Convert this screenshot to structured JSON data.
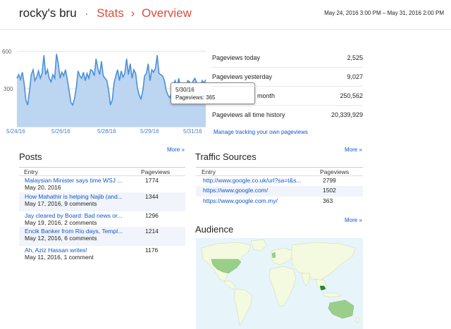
{
  "header": {
    "blog_name": "rocky's bru",
    "separator": "·",
    "crumb_stats": "Stats",
    "crumb_arrow": "›",
    "crumb_overview": "Overview",
    "date_range": "May 24, 2016 3:00 PM – May 31, 2016 2:00 PM"
  },
  "chart_data": {
    "type": "area",
    "y_ticks": [
      "600",
      "300"
    ],
    "ylim": [
      0,
      650
    ],
    "x_ticks": [
      "5/24/16",
      "5/26/16",
      "5/28/16",
      "5/29/16",
      "5/31/16"
    ],
    "values": [
      400,
      430,
      390,
      450,
      360,
      220,
      180,
      300,
      430,
      470,
      380,
      410,
      460,
      400,
      440,
      590,
      430,
      470,
      400,
      370,
      430,
      400,
      600,
      520,
      400,
      450,
      420,
      470,
      390,
      300,
      200,
      180,
      230,
      320,
      460,
      420,
      400,
      450,
      380,
      440,
      400,
      470,
      460,
      420,
      560,
      480,
      430,
      540,
      420,
      400,
      380,
      300,
      180,
      220,
      360,
      420,
      470,
      380,
      460,
      410,
      440,
      560,
      430,
      520,
      400,
      470,
      440,
      320,
      260,
      230,
      300,
      420,
      440,
      520,
      380,
      470,
      450,
      480,
      590,
      440,
      430,
      420,
      380,
      300,
      260,
      240,
      280,
      350,
      380,
      320,
      400,
      300,
      280,
      310,
      330,
      380,
      370,
      320,
      380,
      400,
      360,
      330,
      310,
      380,
      360,
      390
    ],
    "series_color": "#4a90d9",
    "fill_color": "#bcd5f0",
    "tooltip": {
      "date": "5/30/16",
      "label": "Pageviews: 365"
    }
  },
  "stats": [
    {
      "label": "Pageviews today",
      "value": "2,525"
    },
    {
      "label": "Pageviews yesterday",
      "value": "9,027"
    },
    {
      "label": "month",
      "value": "250,562"
    },
    {
      "label": "Pageviews all time history",
      "value": "20,339,929"
    }
  ],
  "manage_link": "Manage tracking your own pageviews",
  "more_label": "More »",
  "posts": {
    "title": "Posts",
    "col_entry": "Entry",
    "col_pageviews": "Pageviews",
    "rows": [
      {
        "title": "Malaysian Minister says time WSJ ...",
        "meta": "May 20, 2016",
        "views": "1774"
      },
      {
        "title": "How Mahathir is helping Najib (and...",
        "meta": "May 17, 2016, 9 comments",
        "views": "1344"
      },
      {
        "title": "Jay cleared by Board: Bad news or...",
        "meta": "May 19, 2016, 2 comments",
        "views": "1296"
      },
      {
        "title": "Encik Banker from Rio days, Templ...",
        "meta": "May 12, 2016, 6 comments",
        "views": "1214"
      },
      {
        "title": "Ah, Aziz Hassan writes!",
        "meta": "May 11, 2016, 1 comment",
        "views": "1176"
      }
    ]
  },
  "traffic": {
    "title": "Traffic Sources",
    "col_entry": "Entry",
    "col_pageviews": "Pageviews",
    "rows": [
      {
        "url": "http://www.google.co.uk/url?sa=t&s...",
        "views": "2799"
      },
      {
        "url": "https://www.google.com/",
        "views": "1502"
      },
      {
        "url": "https://www.google.com.my/",
        "views": "363"
      }
    ]
  },
  "audience": {
    "title": "Audience",
    "ocean_color": "#e7f4fa",
    "land_color": "#f4fae0",
    "highlight_color": "#9acf8a",
    "top_color": "#1e8a2e"
  }
}
